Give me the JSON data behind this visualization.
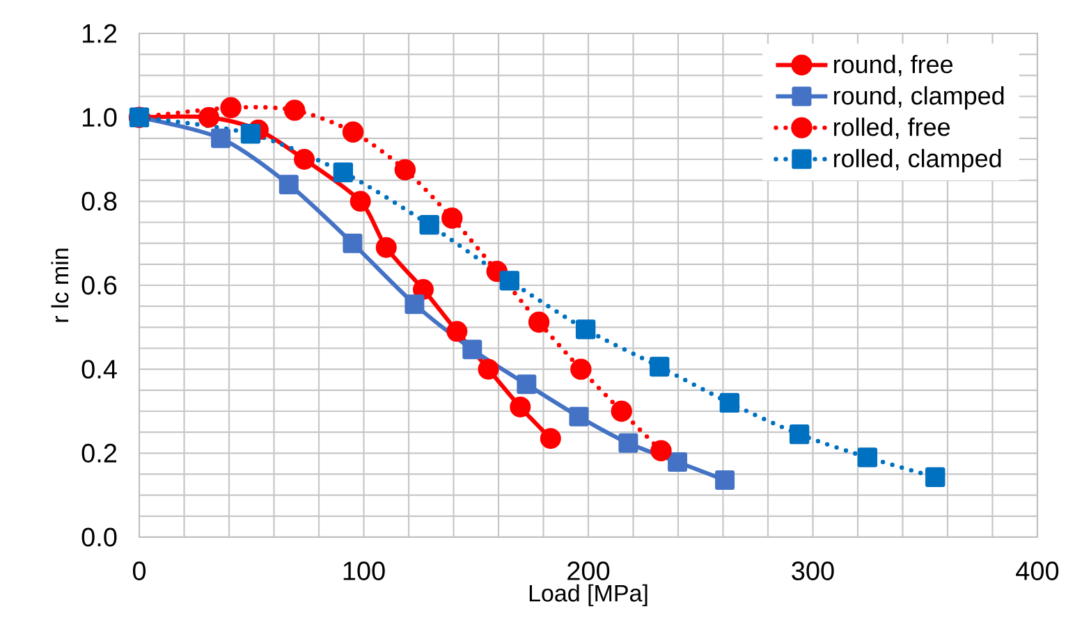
{
  "chart_data": {
    "type": "line",
    "xlabel": "Load [MPa]",
    "ylabel": "r lc min",
    "xlim": [
      0,
      400
    ],
    "ylim": [
      0,
      1.2
    ],
    "xticks": [
      0,
      100,
      200,
      300,
      400
    ],
    "yticks": [
      {
        "value": 0,
        "label": "0.0"
      },
      {
        "value": 0.2,
        "label": "0.2"
      },
      {
        "value": 0.4,
        "label": "0.4"
      },
      {
        "value": 0.6,
        "label": "0.6"
      },
      {
        "value": 0.8,
        "label": "0.8"
      },
      {
        "value": 1.0,
        "label": "1.0"
      },
      {
        "value": 1.2,
        "label": "1.2"
      }
    ],
    "grid": true,
    "legend": "top right",
    "series": [
      {
        "name": "round, free",
        "color": "#ff0000",
        "marker": "circle",
        "line_style": "solid",
        "x": [
          0,
          31,
          53,
          73.5,
          98.5,
          110,
          126.5,
          141.5,
          155.5,
          169.7,
          183.2
        ],
        "values": [
          1.0,
          1.0,
          0.97,
          0.9,
          0.8,
          0.69,
          0.59,
          0.49,
          0.4,
          0.31,
          0.235
        ]
      },
      {
        "name": "round, clamped",
        "color": "#4472c4",
        "marker": "square",
        "line_style": "solid",
        "x": [
          0,
          36.3,
          66.6,
          95,
          122.6,
          148.3,
          172.5,
          195.8,
          217.8,
          239.7,
          260.8
        ],
        "values": [
          1.0,
          0.95,
          0.84,
          0.7,
          0.555,
          0.447,
          0.364,
          0.287,
          0.224,
          0.179,
          0.136
        ]
      },
      {
        "name": "rolled, free",
        "color": "#ff0000",
        "marker": "circle",
        "line_style": "dotted",
        "x": [
          0,
          40.8,
          69.2,
          95.2,
          118.4,
          139.3,
          159.3,
          178,
          196.7,
          214.8,
          232.4
        ],
        "values": [
          1.0,
          1.023,
          1.017,
          0.965,
          0.875,
          0.76,
          0.633,
          0.512,
          0.4,
          0.3,
          0.206
        ]
      },
      {
        "name": "rolled, clamped",
        "color": "#0070c0",
        "marker": "square",
        "line_style": "dotted",
        "x": [
          0,
          49.6,
          90.8,
          129.2,
          164.9,
          198.8,
          231.7,
          262.9,
          294,
          324.3,
          354.5
        ],
        "values": [
          1.0,
          0.961,
          0.869,
          0.744,
          0.611,
          0.495,
          0.406,
          0.32,
          0.245,
          0.19,
          0.143
        ]
      }
    ]
  }
}
